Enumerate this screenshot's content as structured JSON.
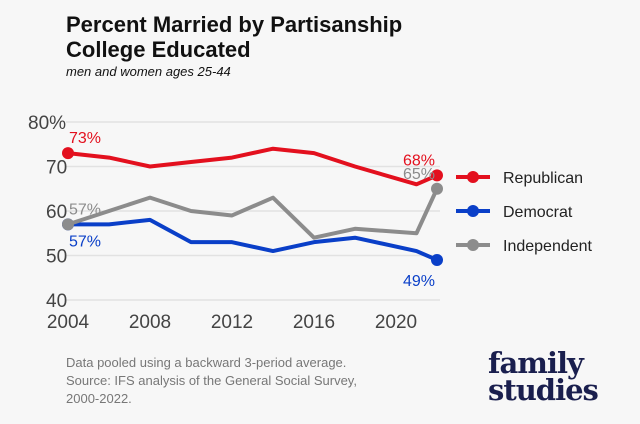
{
  "chart_data": {
    "type": "line",
    "title_lines": [
      "Percent Married by Partisanship",
      "College Educated"
    ],
    "subtitle": "men and women ages 25-44",
    "x": [
      2004,
      2006,
      2008,
      2010,
      2012,
      2014,
      2016,
      2018,
      2021,
      2022
    ],
    "xticks": [
      "2004",
      "2008",
      "2012",
      "2016",
      "2020"
    ],
    "yticks": [
      "80%",
      "70",
      "60",
      "50",
      "40"
    ],
    "ylim": [
      40,
      80
    ],
    "grid": true,
    "legend_position": "right",
    "series": [
      {
        "name": "Republican",
        "color": "#e3101e",
        "values": [
          73,
          72,
          70,
          71,
          72,
          74,
          73,
          70,
          66,
          68
        ],
        "start_label": "73%",
        "end_label": "68%"
      },
      {
        "name": "Democrat",
        "color": "#0a3fc8",
        "values": [
          57,
          57,
          58,
          53,
          53,
          51,
          53,
          54,
          51,
          49
        ],
        "start_label": "57%",
        "end_label": "49%"
      },
      {
        "name": "Independent",
        "color": "#8c8c8c",
        "values": [
          57,
          60,
          63,
          60,
          59,
          63,
          54,
          56,
          55,
          65
        ],
        "start_label": "57%",
        "end_label": "65%"
      }
    ]
  },
  "notes": [
    "Data pooled using a backward 3-period average.",
    "Source: IFS analysis of the General Social Survey,",
    "2000-2022."
  ],
  "logo": [
    "family",
    "studies"
  ]
}
